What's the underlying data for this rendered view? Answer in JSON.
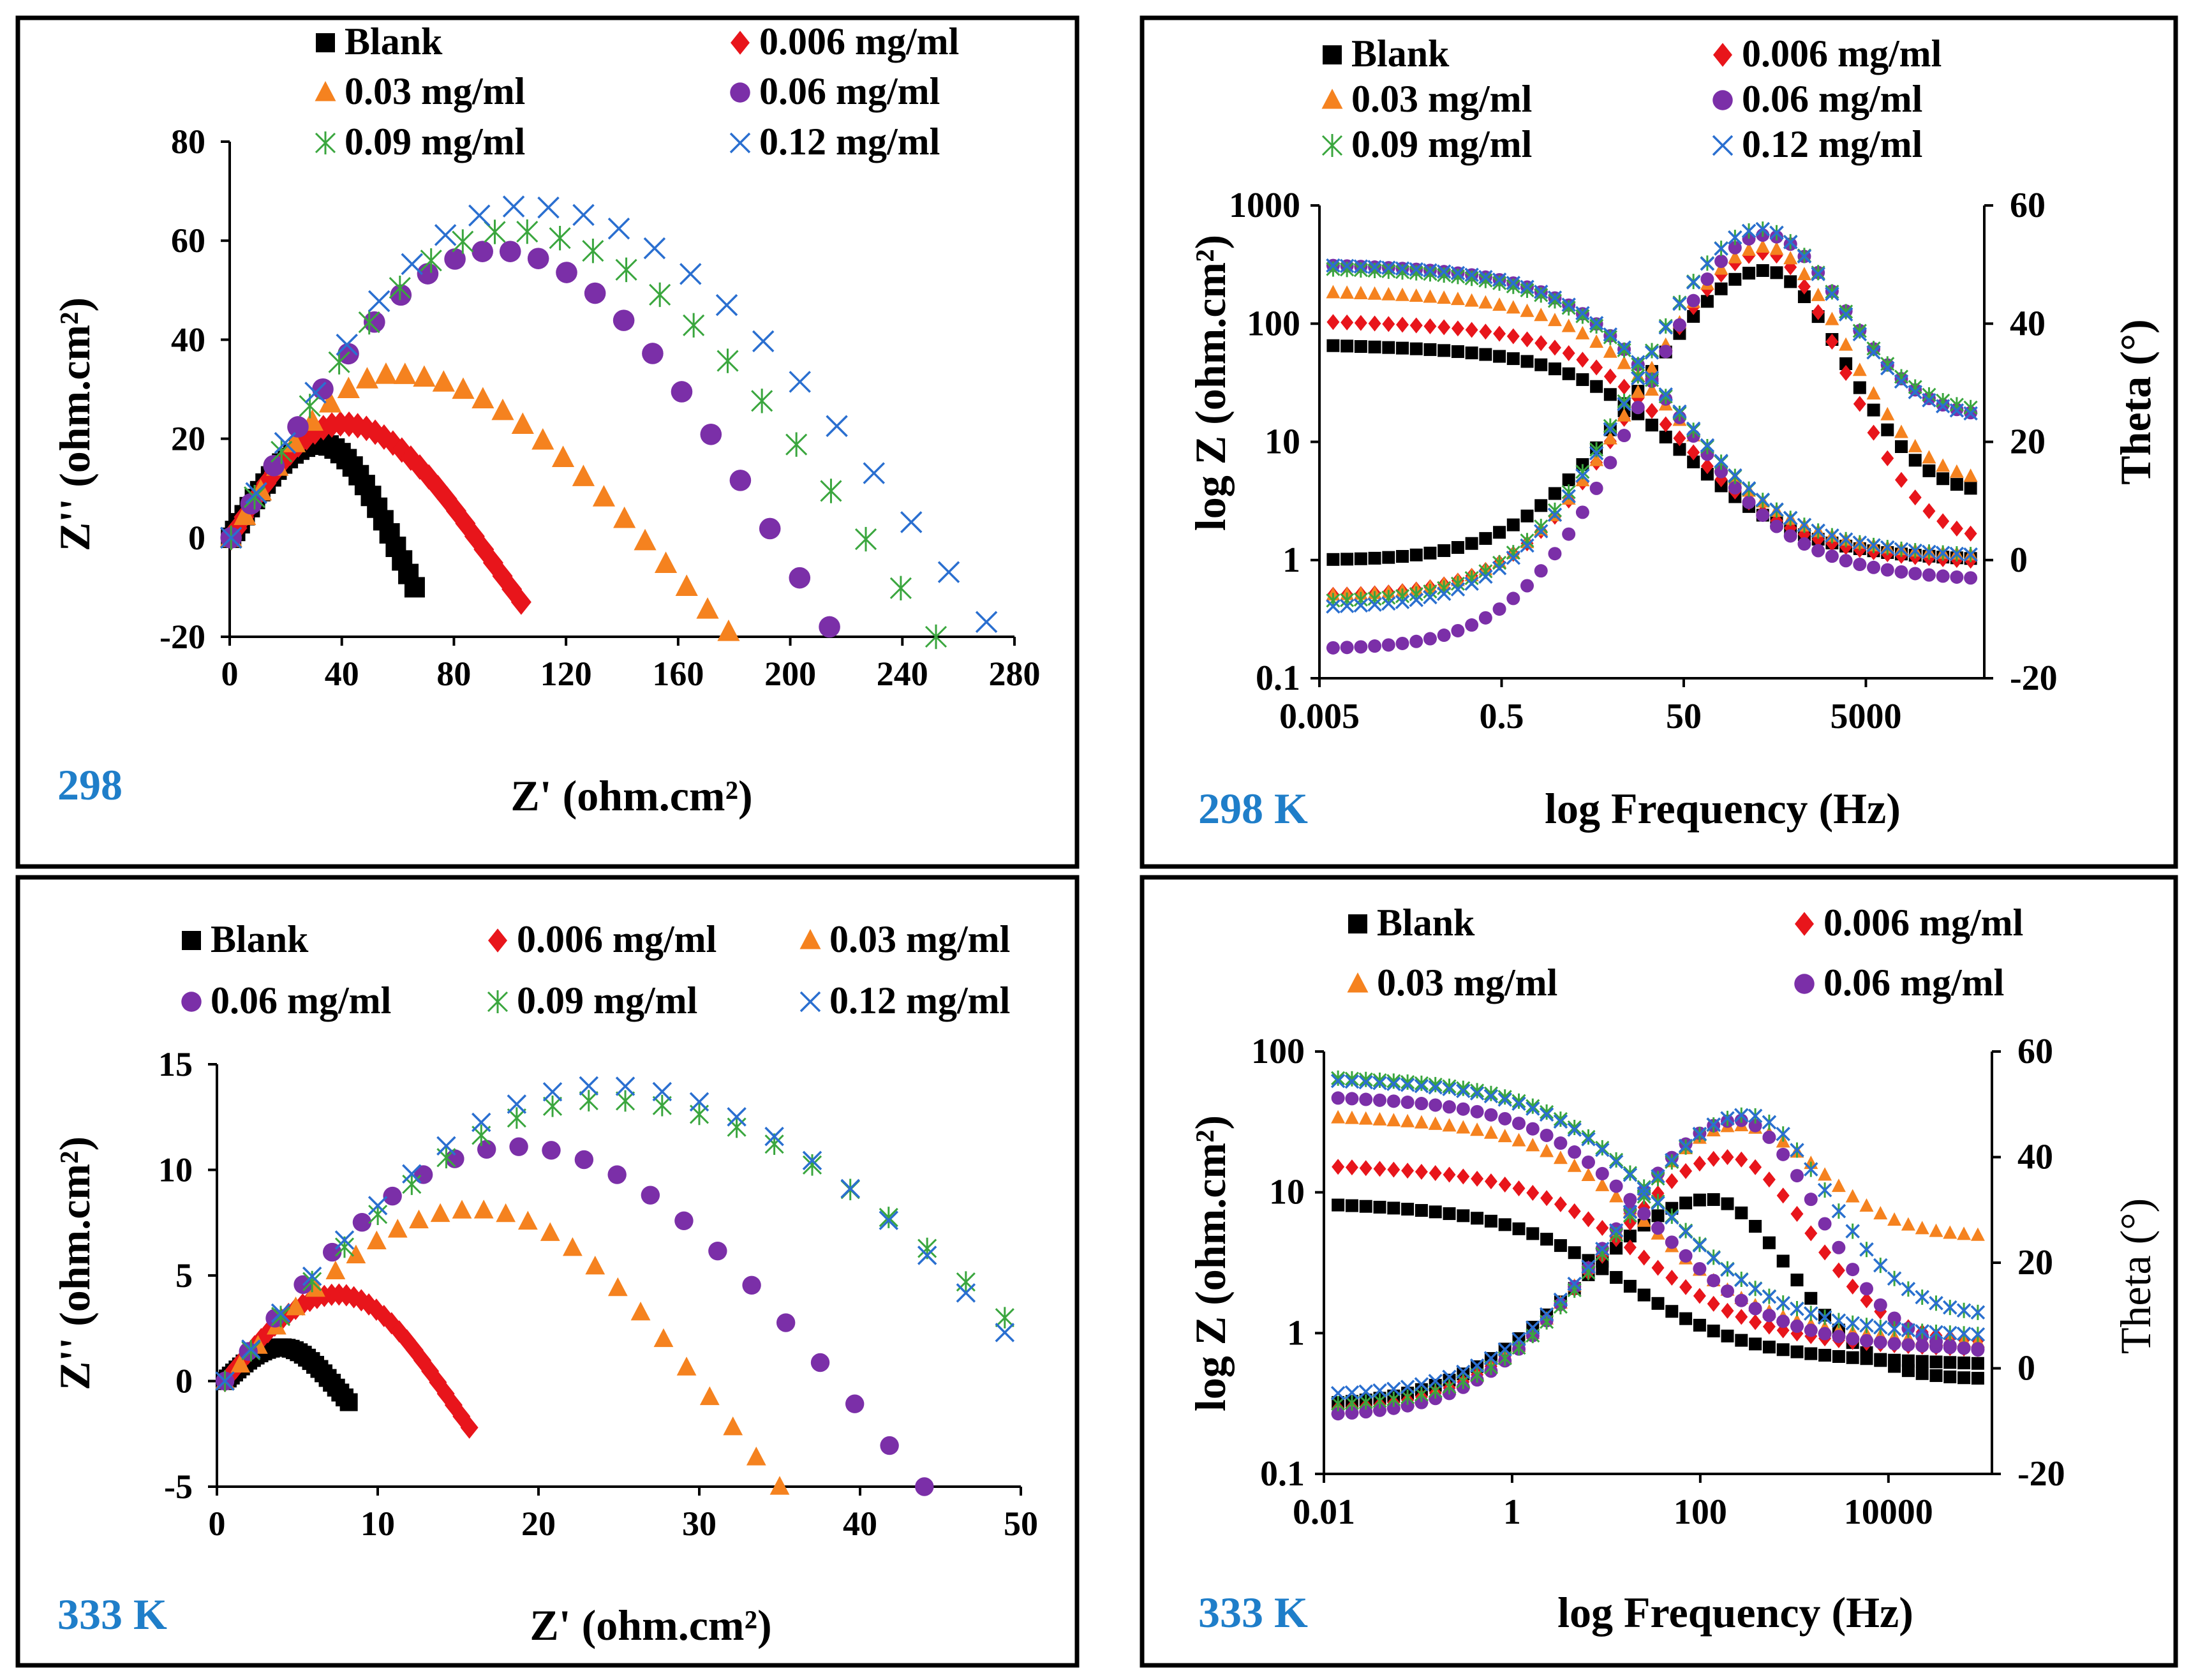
{
  "colors": {
    "blank": "#000000",
    "c006": "#e8151b",
    "c03": "#f5821f",
    "c06": "#7b2fa8",
    "c09": "#3aa63e",
    "c12": "#2a6fd0",
    "label_blue": "#1f7ec9"
  },
  "legend_labels": [
    "Blank",
    "0.006 mg/ml",
    "0.03 mg/ml",
    "0.06 mg/ml",
    "0.09 mg/ml",
    "0.12 mg/ml"
  ],
  "chart_data": [
    {
      "id": "nyquist-298",
      "type": "scatter",
      "title": "",
      "temperature_label": "298",
      "xlabel": "Z' (ohm.cm²)",
      "ylabel": "Z'' (ohm.cm²)",
      "xlim": [
        0,
        280
      ],
      "ylim": [
        -20,
        80
      ],
      "xticks": [
        0,
        40,
        80,
        120,
        160,
        200,
        240,
        280
      ],
      "yticks": [
        -20,
        0,
        20,
        40,
        60,
        80
      ],
      "series": [
        {
          "name": "Blank",
          "marker": "square",
          "rmax": 66,
          "min": -10
        },
        {
          "name": "0.006 mg/ml",
          "marker": "diamond",
          "rmax": 104,
          "min": -13
        },
        {
          "name": "0.03 mg/ml",
          "marker": "triangle",
          "rmax": 178,
          "min": -19
        },
        {
          "name": "0.06 mg/ml",
          "marker": "circle",
          "rmax": 214,
          "min": -18
        },
        {
          "name": "0.09 mg/ml",
          "marker": "star",
          "rmax": 252,
          "min": -20
        },
        {
          "name": "0.12 mg/ml",
          "marker": "x",
          "rmax": 270,
          "min": -17
        }
      ],
      "peaks": [
        {
          "series": "Blank",
          "x": 32,
          "y": 19
        },
        {
          "series": "0.006 mg/ml",
          "x": 40,
          "y": 23
        },
        {
          "series": "0.03 mg/ml",
          "x": 58,
          "y": 33
        },
        {
          "series": "0.06 mg/ml",
          "x": 95,
          "y": 58
        },
        {
          "series": "0.09 mg/ml",
          "x": 100,
          "y": 62
        },
        {
          "series": "0.12 mg/ml",
          "x": 105,
          "y": 67
        }
      ]
    },
    {
      "id": "bode-298",
      "type": "line",
      "temperature_label": "298 K",
      "xlabel": "log Frequency (Hz)",
      "ylabel": "log Z (ohm.cm²)",
      "y2label": "Theta (°)",
      "xtick_labels": [
        "0.005",
        "0.5",
        "50",
        "5000"
      ],
      "ytick_labels": [
        "0.1",
        "1",
        "10",
        "100",
        "1000"
      ],
      "y2ticks": [
        -20,
        0,
        20,
        40,
        60
      ],
      "xlim_log": [
        -2.3,
        5.0
      ],
      "ylim_log": [
        -1,
        3
      ],
      "y2lim": [
        -20,
        60
      ],
      "series": [
        {
          "name": "Blank",
          "logZ_low": 1.82,
          "logZ_high": 0.02,
          "theta_peak": 49,
          "theta_peak_logf": 2.6,
          "theta_low": 0,
          "theta_end": 11
        },
        {
          "name": "0.006 mg/ml",
          "logZ_low": 2.02,
          "logZ_high": 0.0,
          "theta_peak": 52,
          "theta_peak_logf": 2.6,
          "theta_low": -6,
          "theta_end": 3
        },
        {
          "name": "0.03 mg/ml",
          "logZ_low": 2.27,
          "logZ_high": 0.05,
          "theta_peak": 53,
          "theta_peak_logf": 2.6,
          "theta_low": -6,
          "theta_end": 13
        },
        {
          "name": "0.06 mg/ml",
          "logZ_low": 2.5,
          "logZ_high": -0.15,
          "theta_peak": 55,
          "theta_peak_logf": 2.6,
          "theta_low": -15,
          "theta_end": 24
        },
        {
          "name": "0.09 mg/ml",
          "logZ_low": 2.47,
          "logZ_high": 0.05,
          "theta_peak": 56,
          "theta_peak_logf": 2.55,
          "theta_low": -7,
          "theta_end": 25
        },
        {
          "name": "0.12 mg/ml",
          "logZ_low": 2.5,
          "logZ_high": 0.05,
          "theta_peak": 56,
          "theta_peak_logf": 2.55,
          "theta_low": -8,
          "theta_end": 24
        }
      ]
    },
    {
      "id": "nyquist-333",
      "type": "scatter",
      "temperature_label": "333 K",
      "xlabel": "Z' (ohm.cm²)",
      "ylabel": "Z'' (ohm.cm²)",
      "xlim": [
        0,
        50
      ],
      "ylim": [
        -5,
        15
      ],
      "xticks": [
        0,
        10,
        20,
        30,
        40,
        50
      ],
      "yticks": [
        -5,
        0,
        5,
        10,
        15
      ],
      "series": [
        {
          "name": "Blank",
          "marker": "square",
          "rmax": 8.2,
          "min": -1
        },
        {
          "name": "0.006 mg/ml",
          "marker": "diamond",
          "rmax": 15.7,
          "min": -2.2
        },
        {
          "name": "0.03 mg/ml",
          "marker": "triangle",
          "rmax": 35,
          "min": -5
        },
        {
          "name": "0.06 mg/ml",
          "marker": "circle",
          "rmax": 44,
          "min": -5
        },
        {
          "name": "0.09 mg/ml",
          "marker": "star",
          "rmax": 49,
          "min": 3
        },
        {
          "name": "0.12 mg/ml",
          "marker": "x",
          "rmax": 49,
          "min": 2.3
        }
      ],
      "peaks": [
        {
          "series": "Blank",
          "x": 4,
          "y": 1.6
        },
        {
          "series": "0.006 mg/ml",
          "x": 7.5,
          "y": 4.1
        },
        {
          "series": "0.03 mg/ml",
          "x": 16,
          "y": 8.1
        },
        {
          "series": "0.06 mg/ml",
          "x": 18.5,
          "y": 11.1
        },
        {
          "series": "0.09 mg/ml",
          "x": 24,
          "y": 13.3
        },
        {
          "series": "0.12 mg/ml",
          "x": 24,
          "y": 14
        }
      ]
    },
    {
      "id": "bode-333",
      "type": "line",
      "temperature_label": "333 K",
      "xlabel": "log Frequency (Hz)",
      "ylabel": "log Z (ohm.cm²)",
      "y2label": "Theta (°)",
      "xtick_labels": [
        "0.01",
        "1",
        "100",
        "10000"
      ],
      "ytick_labels": [
        "0.1",
        "1",
        "10",
        "100"
      ],
      "y2ticks": [
        -20,
        0,
        20,
        40,
        60
      ],
      "xlim_log": [
        -2,
        5.1
      ],
      "ylim_log": [
        -1,
        2
      ],
      "y2lim": [
        -20,
        60
      ],
      "legend_visible": [
        "Blank",
        "0.006 mg/ml",
        "0.03 mg/ml",
        "0.06 mg/ml"
      ],
      "series": [
        {
          "name": "Blank",
          "logZ_low": 0.92,
          "logZ_high": -0.2,
          "theta_peak": 32,
          "theta_peak_logf": 2.1,
          "theta_low": -7,
          "theta_end": -2
        },
        {
          "name": "0.006 mg/ml",
          "logZ_low": 1.19,
          "logZ_high": -0.1,
          "theta_peak": 40,
          "theta_peak_logf": 2.3,
          "theta_low": -8,
          "theta_end": 5
        },
        {
          "name": "0.03 mg/ml",
          "logZ_low": 1.54,
          "logZ_high": -0.05,
          "theta_peak": 46,
          "theta_peak_logf": 2.4,
          "theta_low": -8,
          "theta_end": 25
        },
        {
          "name": "0.06 mg/ml",
          "logZ_low": 1.68,
          "logZ_high": -0.1,
          "theta_peak": 47,
          "theta_peak_logf": 2.4,
          "theta_low": -9,
          "theta_end": 3
        },
        {
          "name": "0.09 mg/ml",
          "logZ_low": 1.82,
          "logZ_high": 0.0,
          "theta_peak": 48,
          "theta_peak_logf": 2.5,
          "theta_low": -7,
          "theta_end": 10
        },
        {
          "name": "0.12 mg/ml",
          "logZ_low": 1.8,
          "logZ_high": 0.0,
          "theta_peak": 48,
          "theta_peak_logf": 2.5,
          "theta_low": -5,
          "theta_end": 10
        }
      ]
    }
  ]
}
